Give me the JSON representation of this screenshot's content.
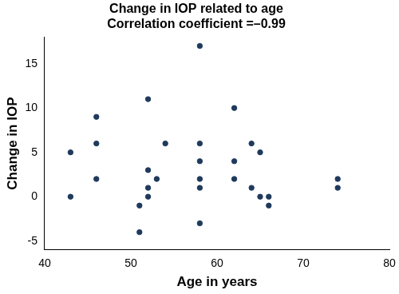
{
  "chart_data": {
    "type": "scatter",
    "title": "Change in IOP related to age",
    "subtitle": "Correlation coefficient =–0.99",
    "x_label": "Age in years",
    "y_label": "Change in IOP",
    "x": [
      43,
      43,
      46,
      46,
      46,
      51,
      51,
      52,
      52,
      52,
      52,
      53,
      54,
      58,
      58,
      58,
      58,
      58,
      58,
      62,
      62,
      62,
      64,
      64,
      65,
      65,
      66,
      66,
      74,
      74
    ],
    "values": [
      5,
      0,
      9,
      6,
      2,
      -1,
      -4,
      11,
      3,
      1,
      0,
      2,
      6,
      17,
      6,
      4,
      2,
      1,
      -3,
      10,
      4,
      2,
      6,
      1,
      5,
      0,
      0,
      -1,
      2,
      1
    ],
    "color": "#1f3a5c",
    "marker": "circle",
    "xlim": [
      40,
      80
    ],
    "xticks": [
      40,
      50,
      60,
      70,
      80
    ],
    "ylim": [
      -6,
      18
    ],
    "yticks": [
      -5,
      0,
      5,
      10,
      15
    ],
    "grid": false
  }
}
